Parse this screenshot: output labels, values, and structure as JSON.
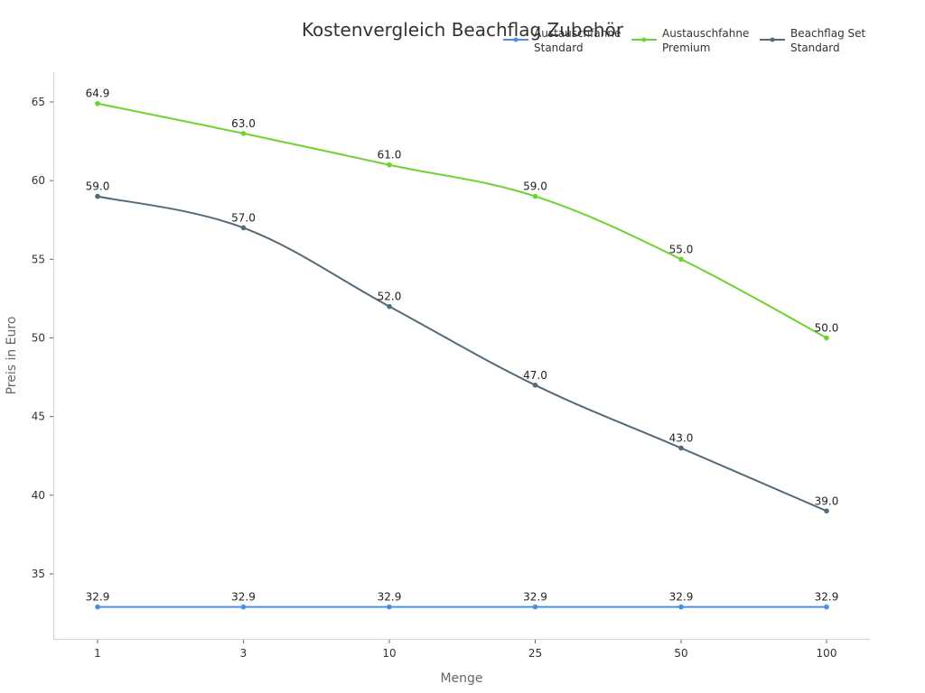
{
  "chart_data": {
    "type": "line",
    "title": "Kostenvergleich Beachflag Zubehör",
    "xlabel": "Menge",
    "ylabel": "Preis in Euro",
    "categories": [
      "1",
      "3",
      "10",
      "25",
      "50",
      "100"
    ],
    "yticks": [
      "35",
      "40",
      "45",
      "50",
      "55",
      "60",
      "65"
    ],
    "ylim": [
      31,
      66.9
    ],
    "grid": false,
    "legend_position": "top-right",
    "series": [
      {
        "name": "Austauschfahne Standard",
        "legend_lines": [
          "Austauschfahne",
          "Standard"
        ],
        "color": "#4a90e2",
        "values": [
          32.9,
          32.9,
          32.9,
          32.9,
          32.9,
          32.9
        ],
        "labels": [
          "32.9",
          "32.9",
          "32.9",
          "32.9",
          "32.9",
          "32.9"
        ]
      },
      {
        "name": "Austauschfahne Premium",
        "legend_lines": [
          "Austauschfahne",
          "Premium"
        ],
        "color": "#6dd42f",
        "values": [
          64.9,
          63.0,
          61.0,
          59.0,
          55.0,
          50.0
        ],
        "labels": [
          "64.9",
          "63.0",
          "61.0",
          "59.0",
          "55.0",
          "50.0"
        ]
      },
      {
        "name": "Beachflag Set Standard",
        "legend_lines": [
          "Beachflag Set",
          "Standard"
        ],
        "color": "#546a78",
        "values": [
          59.0,
          57.0,
          52.0,
          47.0,
          43.0,
          39.0
        ],
        "labels": [
          "59.0",
          "57.0",
          "52.0",
          "47.0",
          "43.0",
          "39.0"
        ]
      }
    ]
  }
}
